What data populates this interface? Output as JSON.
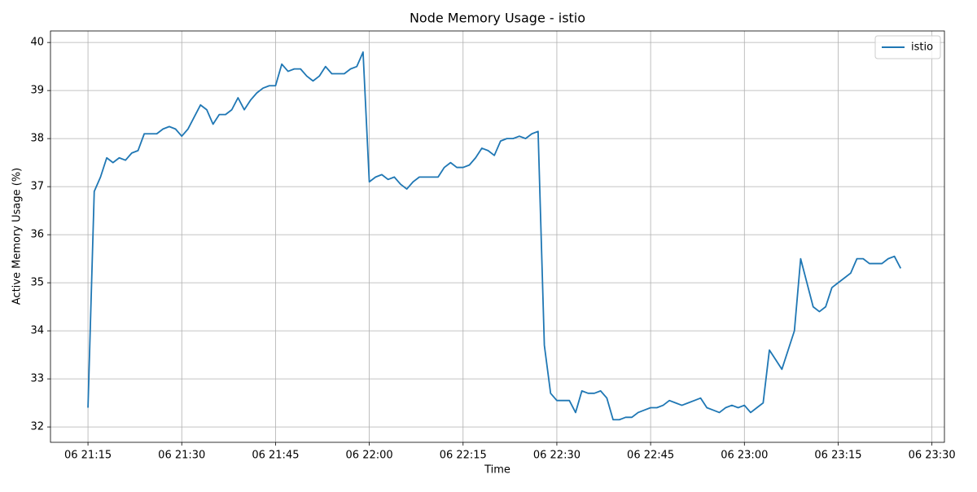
{
  "chart_data": {
    "type": "line",
    "title": "Node Memory Usage - istio",
    "xlabel": "Time",
    "ylabel": "Active Memory Usage (%)",
    "x": [
      "06 21:15",
      "06 21:16",
      "06 21:17",
      "06 21:18",
      "06 21:19",
      "06 21:20",
      "06 21:21",
      "06 21:22",
      "06 21:23",
      "06 21:24",
      "06 21:25",
      "06 21:26",
      "06 21:27",
      "06 21:28",
      "06 21:29",
      "06 21:30",
      "06 21:31",
      "06 21:32",
      "06 21:33",
      "06 21:34",
      "06 21:35",
      "06 21:36",
      "06 21:37",
      "06 21:38",
      "06 21:39",
      "06 21:40",
      "06 21:41",
      "06 21:42",
      "06 21:43",
      "06 21:44",
      "06 21:45",
      "06 21:46",
      "06 21:47",
      "06 21:48",
      "06 21:49",
      "06 21:50",
      "06 21:51",
      "06 21:52",
      "06 21:53",
      "06 21:54",
      "06 21:55",
      "06 21:56",
      "06 21:57",
      "06 21:58",
      "06 21:59",
      "06 22:00",
      "06 22:01",
      "06 22:02",
      "06 22:03",
      "06 22:04",
      "06 22:05",
      "06 22:06",
      "06 22:07",
      "06 22:08",
      "06 22:09",
      "06 22:10",
      "06 22:11",
      "06 22:12",
      "06 22:13",
      "06 22:14",
      "06 22:15",
      "06 22:16",
      "06 22:17",
      "06 22:18",
      "06 22:19",
      "06 22:20",
      "06 22:21",
      "06 22:22",
      "06 22:23",
      "06 22:24",
      "06 22:25",
      "06 22:26",
      "06 22:27",
      "06 22:28",
      "06 22:29",
      "06 22:30",
      "06 22:31",
      "06 22:32",
      "06 22:33",
      "06 22:34",
      "06 22:35",
      "06 22:36",
      "06 22:37",
      "06 22:38",
      "06 22:39",
      "06 22:40",
      "06 22:41",
      "06 22:42",
      "06 22:43",
      "06 22:44",
      "06 22:45",
      "06 22:46",
      "06 22:47",
      "06 22:48",
      "06 22:49",
      "06 22:50",
      "06 22:51",
      "06 22:52",
      "06 22:53",
      "06 22:54",
      "06 22:55",
      "06 22:56",
      "06 22:57",
      "06 22:58",
      "06 22:59",
      "06 23:00",
      "06 23:01",
      "06 23:02",
      "06 23:03",
      "06 23:04",
      "06 23:05",
      "06 23:06",
      "06 23:07",
      "06 23:08",
      "06 23:09",
      "06 23:10",
      "06 23:11",
      "06 23:12",
      "06 23:13",
      "06 23:14",
      "06 23:15",
      "06 23:16",
      "06 23:17",
      "06 23:18",
      "06 23:19",
      "06 23:20",
      "06 23:21",
      "06 23:22",
      "06 23:23",
      "06 23:24",
      "06 23:25"
    ],
    "series": [
      {
        "name": "istio",
        "color": "#1f77b4",
        "values": [
          32.4,
          36.9,
          37.2,
          37.6,
          37.5,
          37.6,
          37.55,
          37.7,
          37.75,
          38.1,
          38.1,
          38.1,
          38.2,
          38.25,
          38.2,
          38.05,
          38.2,
          38.45,
          38.7,
          38.6,
          38.3,
          38.5,
          38.5,
          38.6,
          38.85,
          38.6,
          38.8,
          38.95,
          39.05,
          39.1,
          39.1,
          39.55,
          39.4,
          39.45,
          39.45,
          39.3,
          39.2,
          39.3,
          39.5,
          39.35,
          39.35,
          39.35,
          39.45,
          39.5,
          39.8,
          37.1,
          37.2,
          37.25,
          37.15,
          37.2,
          37.05,
          36.95,
          37.1,
          37.2,
          37.2,
          37.2,
          37.2,
          37.4,
          37.5,
          37.4,
          37.4,
          37.45,
          37.6,
          37.8,
          37.75,
          37.65,
          37.95,
          38.0,
          38.0,
          38.05,
          38.0,
          38.1,
          38.15,
          33.7,
          32.7,
          32.55,
          32.55,
          32.55,
          32.3,
          32.75,
          32.7,
          32.7,
          32.75,
          32.6,
          32.15,
          32.15,
          32.2,
          32.2,
          32.3,
          32.35,
          32.4,
          32.4,
          32.45,
          32.55,
          32.5,
          32.45,
          32.5,
          32.55,
          32.6,
          32.4,
          32.35,
          32.3,
          32.4,
          32.45,
          32.4,
          32.45,
          32.3,
          32.4,
          32.5,
          33.6,
          33.4,
          33.2,
          33.6,
          34.0,
          35.5,
          35.0,
          34.5,
          34.4,
          34.5,
          34.9,
          35.0,
          35.1,
          35.2,
          35.5,
          35.5,
          35.4,
          35.4,
          35.4,
          35.5,
          35.55,
          35.3
        ]
      }
    ],
    "xlim": [
      "06 21:09",
      "06 23:32"
    ],
    "xticks": [
      "06 21:15",
      "06 21:30",
      "06 21:45",
      "06 22:00",
      "06 22:15",
      "06 22:30",
      "06 22:45",
      "06 23:00",
      "06 23:15",
      "06 23:30"
    ],
    "ylim": [
      31.68,
      40.24
    ],
    "yticks": [
      32,
      33,
      34,
      35,
      36,
      37,
      38,
      39,
      40
    ],
    "grid": true,
    "legend": "upper right"
  }
}
